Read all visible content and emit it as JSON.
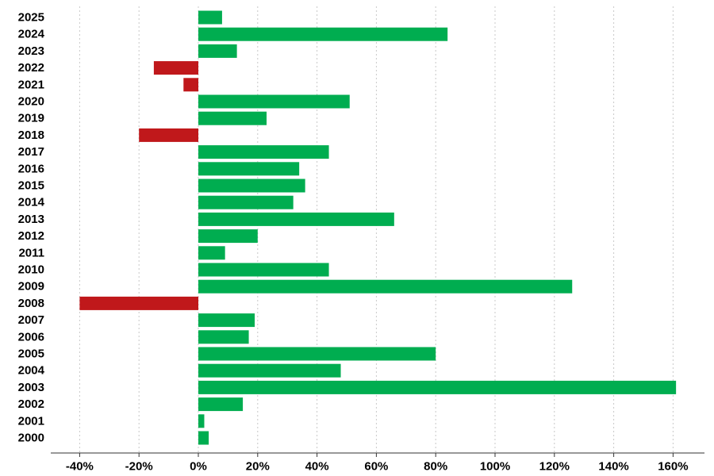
{
  "chart_data": {
    "type": "bar",
    "orientation": "horizontal",
    "categories": [
      "2025",
      "2024",
      "2023",
      "2022",
      "2021",
      "2020",
      "2019",
      "2018",
      "2017",
      "2016",
      "2015",
      "2014",
      "2013",
      "2012",
      "2011",
      "2010",
      "2009",
      "2008",
      "2007",
      "2006",
      "2005",
      "2004",
      "2003",
      "2002",
      "2001",
      "2000"
    ],
    "values": [
      8,
      84,
      13,
      -15,
      -5,
      51,
      23,
      -20,
      44,
      34,
      36,
      32,
      66,
      20,
      9,
      44,
      126,
      -40,
      19,
      17,
      80,
      48,
      161,
      15,
      2,
      3.5
    ],
    "x_ticks": [
      -40,
      -20,
      0,
      20,
      40,
      60,
      80,
      100,
      120,
      140,
      160
    ],
    "x_tick_labels": [
      "-40%",
      "-20%",
      "0%",
      "20%",
      "40%",
      "60%",
      "80%",
      "100%",
      "120%",
      "140%",
      "160%"
    ],
    "xlim": [
      -50,
      170
    ],
    "grid": "vertical",
    "colors": {
      "positive": "#00ad50",
      "negative": "#c0181b"
    },
    "title": "",
    "xlabel": "",
    "ylabel": ""
  }
}
